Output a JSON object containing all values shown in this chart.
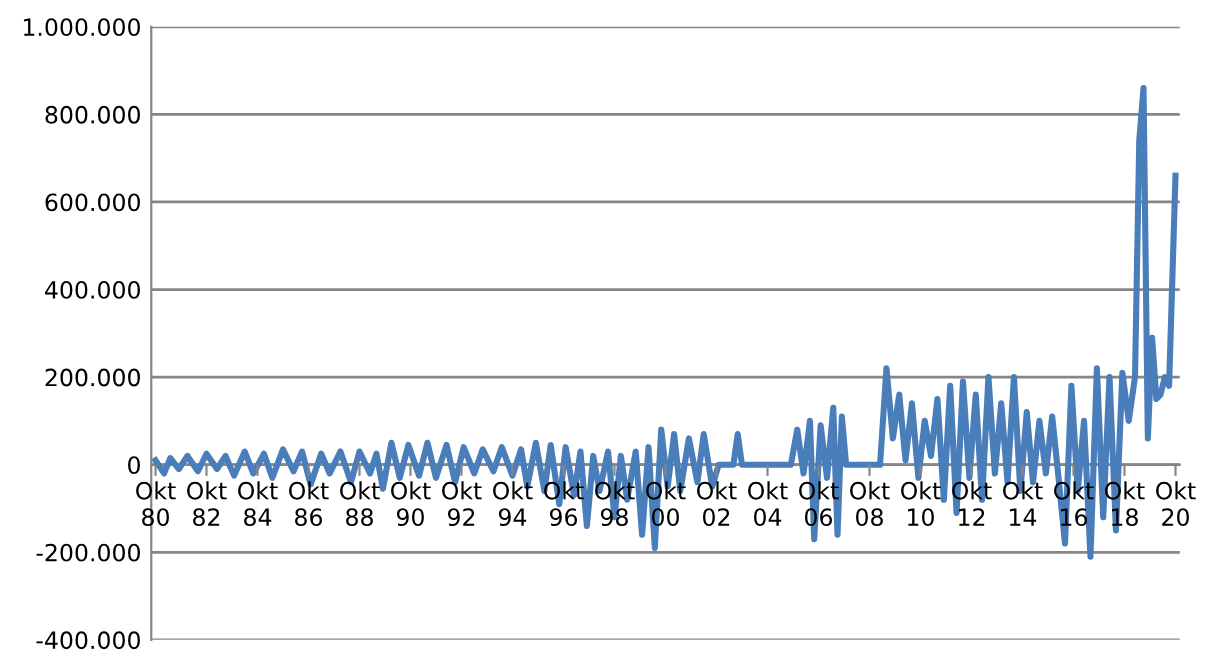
{
  "chart_data": {
    "type": "line",
    "x": [
      "1980-10",
      "1981-02",
      "1981-05",
      "1981-09",
      "1982-01",
      "1982-06",
      "1982-10",
      "1983-03",
      "1983-07",
      "1983-11",
      "1984-04",
      "1984-08",
      "1985-01",
      "1985-05",
      "1985-10",
      "1986-03",
      "1986-07",
      "1986-11",
      "1987-04",
      "1987-08",
      "1988-01",
      "1988-06",
      "1988-10",
      "1989-03",
      "1989-06",
      "1989-09",
      "1990-01",
      "1990-05",
      "1990-09",
      "1991-02",
      "1991-06",
      "1991-10",
      "1992-03",
      "1992-07",
      "1992-11",
      "1993-04",
      "1993-08",
      "1994-01",
      "1994-05",
      "1994-10",
      "1995-02",
      "1995-05",
      "1995-09",
      "1996-01",
      "1996-04",
      "1996-08",
      "1996-11",
      "1997-03",
      "1997-06",
      "1997-09",
      "1997-12",
      "1998-03",
      "1998-07",
      "1998-10",
      "1999-01",
      "1999-04",
      "1999-08",
      "1999-11",
      "2000-02",
      "2000-05",
      "2000-08",
      "2000-11",
      "2001-02",
      "2001-05",
      "2001-09",
      "2002-01",
      "2002-04",
      "2002-08",
      "2002-11",
      "2003-06",
      "2003-08",
      "2003-10",
      "2005-06",
      "2005-09",
      "2005-12",
      "2006-03",
      "2006-06",
      "2006-08",
      "2006-11",
      "2007-02",
      "2007-05",
      "2007-07",
      "2007-09",
      "2007-11",
      "2008-03",
      "2009-03",
      "2009-06",
      "2009-09",
      "2009-12",
      "2010-03",
      "2010-06",
      "2010-09",
      "2010-12",
      "2011-03",
      "2011-06",
      "2011-09",
      "2011-12",
      "2012-03",
      "2012-06",
      "2012-09",
      "2012-12",
      "2013-03",
      "2013-06",
      "2013-09",
      "2013-12",
      "2014-03",
      "2014-06",
      "2014-09",
      "2014-12",
      "2015-03",
      "2015-06",
      "2015-09",
      "2015-12",
      "2016-03",
      "2016-06",
      "2016-09",
      "2016-12",
      "2017-03",
      "2017-06",
      "2017-09",
      "2017-12",
      "2018-03",
      "2018-06",
      "2018-09",
      "2018-12",
      "2019-03",
      "2019-05",
      "2019-07",
      "2019-09",
      "2019-11",
      "2020-01",
      "2020-03",
      "2020-05",
      "2020-07",
      "2020-10"
    ],
    "series": [
      {
        "color": "#4a7ebb",
        "values": [
          10000,
          -20000,
          15000,
          -10000,
          20000,
          -15000,
          25000,
          -10000,
          20000,
          -25000,
          30000,
          -20000,
          25000,
          -30000,
          35000,
          -15000,
          30000,
          -45000,
          25000,
          -20000,
          30000,
          -40000,
          30000,
          -20000,
          25000,
          -55000,
          50000,
          -30000,
          45000,
          -25000,
          50000,
          -30000,
          45000,
          -40000,
          40000,
          -20000,
          35000,
          -15000,
          40000,
          -25000,
          35000,
          -50000,
          50000,
          -60000,
          45000,
          -90000,
          40000,
          -70000,
          30000,
          -140000,
          20000,
          -60000,
          30000,
          -120000,
          20000,
          -80000,
          30000,
          -160000,
          40000,
          -190000,
          80000,
          -50000,
          70000,
          -60000,
          60000,
          -40000,
          70000,
          -50000,
          0,
          0,
          70000,
          0,
          0,
          0,
          80000,
          -20000,
          100000,
          -170000,
          90000,
          -30000,
          130000,
          -160000,
          110000,
          0,
          0,
          0,
          220000,
          60000,
          160000,
          10000,
          140000,
          -30000,
          100000,
          20000,
          150000,
          -80000,
          180000,
          -110000,
          190000,
          -30000,
          160000,
          -80000,
          200000,
          -20000,
          140000,
          -40000,
          200000,
          -60000,
          120000,
          -40000,
          100000,
          -20000,
          110000,
          -30000,
          -180000,
          180000,
          -60000,
          100000,
          -210000,
          220000,
          -120000,
          200000,
          -150000,
          210000,
          100000,
          200000,
          740000,
          860000,
          60000,
          290000,
          150000,
          160000,
          200000,
          180000,
          660000
        ]
      }
    ],
    "xlim": [
      "1980-08",
      "2020-12"
    ],
    "xticks": [
      {
        "value": "1980-10",
        "label": "Okt\n80"
      },
      {
        "value": "1982-10",
        "label": "Okt\n82"
      },
      {
        "value": "1984-10",
        "label": "Okt\n84"
      },
      {
        "value": "1986-10",
        "label": "Okt\n86"
      },
      {
        "value": "1988-10",
        "label": "Okt\n88"
      },
      {
        "value": "1990-10",
        "label": "Okt\n90"
      },
      {
        "value": "1992-10",
        "label": "Okt\n92"
      },
      {
        "value": "1994-10",
        "label": "Okt\n94"
      },
      {
        "value": "1996-10",
        "label": "Okt\n96"
      },
      {
        "value": "1998-10",
        "label": "Okt\n98"
      },
      {
        "value": "2000-10",
        "label": "Okt\n00"
      },
      {
        "value": "2002-10",
        "label": "Okt\n02"
      },
      {
        "value": "2004-10",
        "label": "Okt\n04"
      },
      {
        "value": "2006-10",
        "label": "Okt\n06"
      },
      {
        "value": "2008-10",
        "label": "Okt\n08"
      },
      {
        "value": "2010-10",
        "label": "Okt\n10"
      },
      {
        "value": "2012-10",
        "label": "Okt\n12"
      },
      {
        "value": "2014-10",
        "label": "Okt\n14"
      },
      {
        "value": "2016-10",
        "label": "Okt\n16"
      },
      {
        "value": "2018-10",
        "label": "Okt\n18"
      },
      {
        "value": "2020-10",
        "label": "Okt\n20"
      }
    ],
    "ylim": [
      -400000,
      1000000
    ],
    "yticks": [
      {
        "value": -400000,
        "label": "-400.000"
      },
      {
        "value": -200000,
        "label": "-200.000"
      },
      {
        "value": 0,
        "label": "0"
      },
      {
        "value": 200000,
        "label": "200.000"
      },
      {
        "value": 400000,
        "label": "400.000"
      },
      {
        "value": 600000,
        "label": "600.000"
      },
      {
        "value": 800000,
        "label": "800.000"
      },
      {
        "value": 1000000,
        "label": "1.000.000"
      }
    ],
    "grid": "y",
    "marker": "none",
    "line_style": "solid"
  }
}
